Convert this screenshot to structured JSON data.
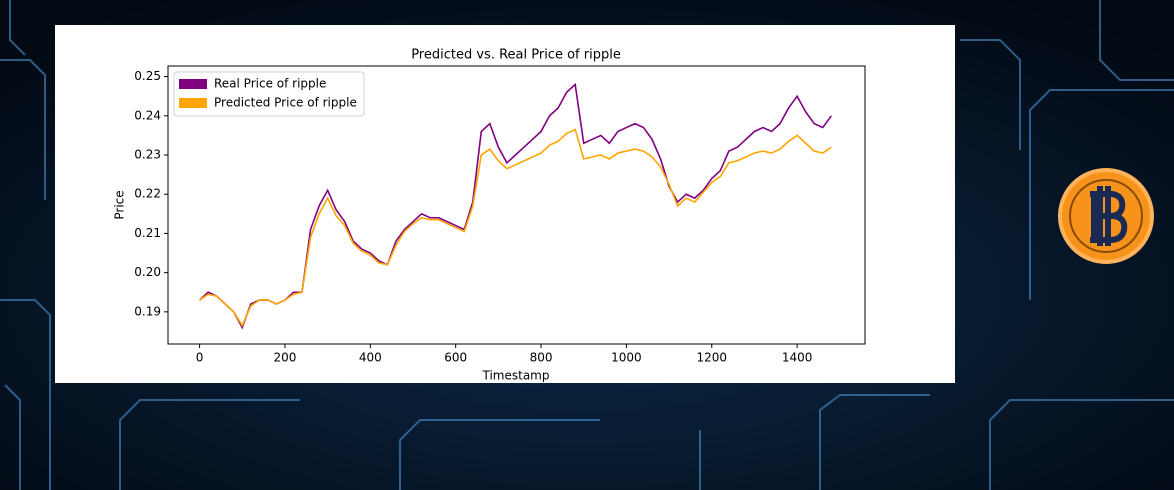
{
  "chart_data": {
    "type": "line",
    "title": "Predicted vs. Real Price of ripple",
    "x_label": "Timestamp",
    "y_label": "Price",
    "x": [
      0,
      20,
      40,
      60,
      80,
      100,
      120,
      140,
      160,
      180,
      200,
      220,
      240,
      260,
      280,
      300,
      320,
      340,
      360,
      380,
      400,
      420,
      440,
      460,
      480,
      500,
      520,
      540,
      560,
      580,
      600,
      620,
      640,
      660,
      680,
      700,
      720,
      740,
      760,
      780,
      800,
      820,
      840,
      860,
      880,
      900,
      920,
      940,
      960,
      980,
      1000,
      1020,
      1040,
      1060,
      1080,
      1100,
      1120,
      1140,
      1160,
      1180,
      1200,
      1220,
      1240,
      1260,
      1280,
      1300,
      1320,
      1340,
      1360,
      1380,
      1400,
      1420,
      1440,
      1460,
      1480
    ],
    "series": [
      {
        "name": "Real Price of ripple",
        "color": "#800080",
        "values": [
          0.193,
          0.195,
          0.194,
          0.192,
          0.19,
          0.186,
          0.192,
          0.193,
          0.193,
          0.192,
          0.193,
          0.195,
          0.195,
          0.211,
          0.217,
          0.221,
          0.216,
          0.213,
          0.208,
          0.206,
          0.205,
          0.203,
          0.202,
          0.208,
          0.211,
          0.213,
          0.215,
          0.214,
          0.214,
          0.213,
          0.212,
          0.211,
          0.218,
          0.236,
          0.238,
          0.232,
          0.228,
          0.23,
          0.232,
          0.234,
          0.236,
          0.24,
          0.242,
          0.246,
          0.248,
          0.233,
          0.234,
          0.235,
          0.233,
          0.236,
          0.237,
          0.238,
          0.237,
          0.234,
          0.229,
          0.222,
          0.218,
          0.22,
          0.219,
          0.221,
          0.224,
          0.226,
          0.231,
          0.232,
          0.234,
          0.236,
          0.237,
          0.236,
          0.238,
          0.242,
          0.245,
          0.241,
          0.238,
          0.237,
          0.24
        ]
      },
      {
        "name": "Predicted Price of ripple",
        "color": "#ffa500",
        "values": [
          0.193,
          0.1945,
          0.194,
          0.192,
          0.19,
          0.1865,
          0.1915,
          0.193,
          0.193,
          0.192,
          0.193,
          0.1945,
          0.195,
          0.209,
          0.215,
          0.219,
          0.2145,
          0.212,
          0.2075,
          0.2055,
          0.2045,
          0.2025,
          0.202,
          0.207,
          0.2105,
          0.2125,
          0.214,
          0.2135,
          0.2135,
          0.2125,
          0.2115,
          0.2105,
          0.217,
          0.23,
          0.2315,
          0.2285,
          0.2265,
          0.2275,
          0.2285,
          0.2295,
          0.2305,
          0.2325,
          0.2335,
          0.2355,
          0.2365,
          0.229,
          0.2295,
          0.23,
          0.229,
          0.2305,
          0.231,
          0.2315,
          0.231,
          0.2295,
          0.227,
          0.2225,
          0.217,
          0.219,
          0.218,
          0.2205,
          0.223,
          0.2245,
          0.228,
          0.2285,
          0.2295,
          0.2305,
          0.231,
          0.2305,
          0.2315,
          0.2335,
          0.235,
          0.233,
          0.231,
          0.2305,
          0.232
        ]
      }
    ],
    "xlim": [
      -74,
      1559
    ],
    "ylim": [
      0.1818,
      0.2527
    ],
    "xticks": [
      0,
      200,
      400,
      600,
      800,
      1000,
      1200,
      1400
    ],
    "yticks": [
      0.19,
      {
        "value": 0.2,
        "label": "0.20"
      },
      0.21,
      0.22,
      0.23,
      0.24,
      0.25
    ],
    "grid": false,
    "legend": "upper left"
  }
}
